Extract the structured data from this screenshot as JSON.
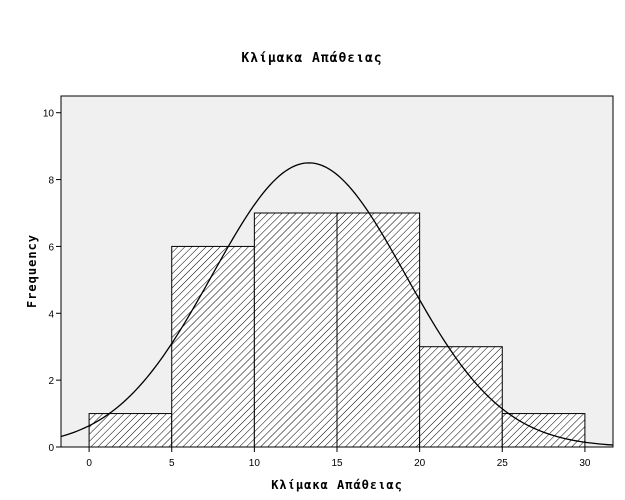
{
  "chart_data": {
    "type": "bar",
    "title": "Κλίμακα Απάθειας",
    "xlabel": "Κλίμακα Απάθειας",
    "ylabel": "Frequency",
    "bins": [
      {
        "x0": 0,
        "x1": 5,
        "count": 1
      },
      {
        "x0": 5,
        "x1": 10,
        "count": 6
      },
      {
        "x0": 10,
        "x1": 15,
        "count": 7
      },
      {
        "x0": 15,
        "x1": 20,
        "count": 7
      },
      {
        "x0": 20,
        "x1": 25,
        "count": 3
      },
      {
        "x0": 25,
        "x1": 30,
        "count": 1
      }
    ],
    "x_ticks": [
      "0",
      "5",
      "10",
      "15",
      "20",
      "25",
      "30"
    ],
    "y_ticks": [
      "0",
      "2",
      "4",
      "6",
      "8",
      "10"
    ],
    "xlim": [
      -1.7,
      31.7
    ],
    "ylim": [
      0,
      10.5
    ],
    "normal_curve": {
      "mean": 13.3,
      "sd": 5.84,
      "peak": 8.5
    },
    "grid": false,
    "colors": {
      "plot_background": "#f0f0f0",
      "bar_fill": "#ffffff",
      "hatch": "#000000",
      "curve": "#000000"
    }
  }
}
